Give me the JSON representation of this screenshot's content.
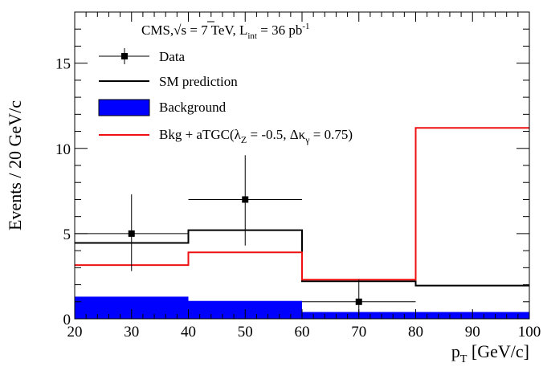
{
  "chart_data": {
    "type": "step",
    "xlabel": "p",
    "xlabel_sub": "T",
    "xlabel_unit": "[GeV/c]",
    "ylabel": "Events / 20 GeV/c",
    "xlim": [
      20,
      100
    ],
    "ylim": [
      0,
      18
    ],
    "x_ticks": [
      20,
      30,
      40,
      50,
      60,
      70,
      80,
      90,
      100
    ],
    "y_ticks": [
      0,
      5,
      10,
      15
    ],
    "bin_edges": [
      20,
      40,
      60,
      80,
      100
    ],
    "annotation": {
      "cms": "CMS,",
      "sqrt": "√",
      "s_part": "s = 7 TeV, L",
      "int": "int",
      "lumi": " = 36 pb",
      "exp": "-1"
    },
    "legend": {
      "data": "Data",
      "sm": "SM prediction",
      "background": "Background",
      "atgc_prefix": "Bkg + aTGC(λ",
      "atgc_sub1": "Z",
      "atgc_mid": " = -0.5, Δκ",
      "atgc_sub2": "γ",
      "atgc_suffix": " = 0.75)"
    },
    "series": [
      {
        "key": "sm",
        "type": "step",
        "color": "#000000",
        "values": [
          4.45,
          5.2,
          2.2,
          1.95
        ]
      },
      {
        "key": "background",
        "type": "filled-step",
        "color": "#0000ff",
        "values": [
          1.3,
          1.05,
          0.4,
          0.4
        ]
      },
      {
        "key": "atgc",
        "type": "step",
        "color": "#ee1111",
        "values": [
          3.15,
          3.9,
          2.3,
          11.2
        ]
      },
      {
        "key": "data",
        "type": "points",
        "color": "#000000",
        "x": [
          30,
          50,
          70
        ],
        "y": [
          5,
          7,
          1
        ],
        "x_err": [
          10,
          10,
          10
        ],
        "y_low": [
          2.8,
          4.3,
          0.2
        ],
        "y_high": [
          7.3,
          9.6,
          2.3
        ]
      }
    ]
  }
}
